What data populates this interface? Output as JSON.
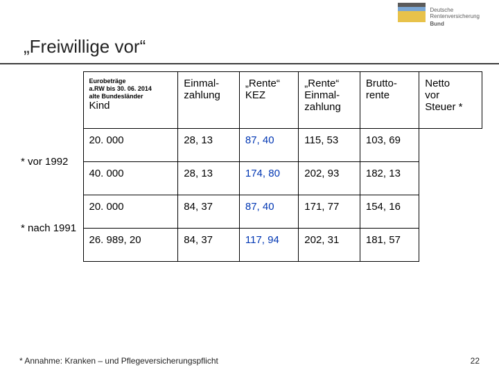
{
  "logo": {
    "line1": "Deutsche",
    "line2": "Rentenversicherung",
    "bund": "Bund"
  },
  "title": "„Freiwillige vor“",
  "header": {
    "col0_small1": "Eurobeträge",
    "col0_small2": "a.RW bis 30. 06. 2014",
    "col0_small3": "alte Bundesländer",
    "col0_kind": "Kind",
    "col1": "Einmal-\nzahlung",
    "col2": "„Rente“\nKEZ",
    "col3": "„Rente“\nEinmal-\nzahlung",
    "col4": "Brutto-\nrente",
    "col5": "Netto\nvor\nSteuer *"
  },
  "groups": [
    {
      "label": "* vor 1992",
      "rows": [
        {
          "c1": "20. 000",
          "c2": "28, 13",
          "c3": "87, 40",
          "c4": "115, 53",
          "c5": "103, 69"
        },
        {
          "c1": "40. 000",
          "c2": "28, 13",
          "c3": "174, 80",
          "c4": "202, 93",
          "c5": "182, 13"
        }
      ]
    },
    {
      "label": "* nach 1991",
      "rows": [
        {
          "c1": "20. 000",
          "c2": "84, 37",
          "c3": "87, 40",
          "c4": "171, 77",
          "c5": "154, 16"
        },
        {
          "c1": "26. 989, 20",
          "c2": "84, 37",
          "c3": "117, 94",
          "c4": "202, 31",
          "c5": "181, 57"
        }
      ]
    }
  ],
  "footnote": "Annahme: Kranken – und Pflegeversicherungspflicht",
  "page": "22",
  "highlight_color": "#0036b3"
}
